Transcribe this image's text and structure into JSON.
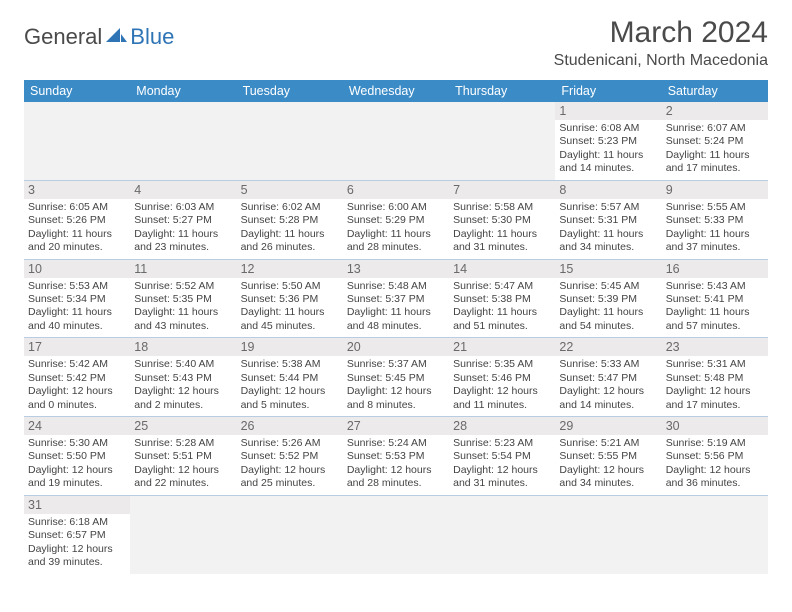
{
  "logo": {
    "general": "General",
    "blue": "Blue"
  },
  "title": "March 2024",
  "location": "Studenicani, North Macedonia",
  "colors": {
    "header_bg": "#3b8bc7",
    "header_text": "#ffffff",
    "cell_border": "#b9cde2",
    "daynum_bg": "#eceaea",
    "empty_bg": "#f2f2f2",
    "logo_blue": "#2f75b5",
    "text": "#4a4a4a"
  },
  "day_headers": [
    "Sunday",
    "Monday",
    "Tuesday",
    "Wednesday",
    "Thursday",
    "Friday",
    "Saturday"
  ],
  "weeks": [
    [
      null,
      null,
      null,
      null,
      null,
      {
        "n": "1",
        "sr": "Sunrise: 6:08 AM",
        "ss": "Sunset: 5:23 PM",
        "dl": "Daylight: 11 hours and 14 minutes."
      },
      {
        "n": "2",
        "sr": "Sunrise: 6:07 AM",
        "ss": "Sunset: 5:24 PM",
        "dl": "Daylight: 11 hours and 17 minutes."
      }
    ],
    [
      {
        "n": "3",
        "sr": "Sunrise: 6:05 AM",
        "ss": "Sunset: 5:26 PM",
        "dl": "Daylight: 11 hours and 20 minutes."
      },
      {
        "n": "4",
        "sr": "Sunrise: 6:03 AM",
        "ss": "Sunset: 5:27 PM",
        "dl": "Daylight: 11 hours and 23 minutes."
      },
      {
        "n": "5",
        "sr": "Sunrise: 6:02 AM",
        "ss": "Sunset: 5:28 PM",
        "dl": "Daylight: 11 hours and 26 minutes."
      },
      {
        "n": "6",
        "sr": "Sunrise: 6:00 AM",
        "ss": "Sunset: 5:29 PM",
        "dl": "Daylight: 11 hours and 28 minutes."
      },
      {
        "n": "7",
        "sr": "Sunrise: 5:58 AM",
        "ss": "Sunset: 5:30 PM",
        "dl": "Daylight: 11 hours and 31 minutes."
      },
      {
        "n": "8",
        "sr": "Sunrise: 5:57 AM",
        "ss": "Sunset: 5:31 PM",
        "dl": "Daylight: 11 hours and 34 minutes."
      },
      {
        "n": "9",
        "sr": "Sunrise: 5:55 AM",
        "ss": "Sunset: 5:33 PM",
        "dl": "Daylight: 11 hours and 37 minutes."
      }
    ],
    [
      {
        "n": "10",
        "sr": "Sunrise: 5:53 AM",
        "ss": "Sunset: 5:34 PM",
        "dl": "Daylight: 11 hours and 40 minutes."
      },
      {
        "n": "11",
        "sr": "Sunrise: 5:52 AM",
        "ss": "Sunset: 5:35 PM",
        "dl": "Daylight: 11 hours and 43 minutes."
      },
      {
        "n": "12",
        "sr": "Sunrise: 5:50 AM",
        "ss": "Sunset: 5:36 PM",
        "dl": "Daylight: 11 hours and 45 minutes."
      },
      {
        "n": "13",
        "sr": "Sunrise: 5:48 AM",
        "ss": "Sunset: 5:37 PM",
        "dl": "Daylight: 11 hours and 48 minutes."
      },
      {
        "n": "14",
        "sr": "Sunrise: 5:47 AM",
        "ss": "Sunset: 5:38 PM",
        "dl": "Daylight: 11 hours and 51 minutes."
      },
      {
        "n": "15",
        "sr": "Sunrise: 5:45 AM",
        "ss": "Sunset: 5:39 PM",
        "dl": "Daylight: 11 hours and 54 minutes."
      },
      {
        "n": "16",
        "sr": "Sunrise: 5:43 AM",
        "ss": "Sunset: 5:41 PM",
        "dl": "Daylight: 11 hours and 57 minutes."
      }
    ],
    [
      {
        "n": "17",
        "sr": "Sunrise: 5:42 AM",
        "ss": "Sunset: 5:42 PM",
        "dl": "Daylight: 12 hours and 0 minutes."
      },
      {
        "n": "18",
        "sr": "Sunrise: 5:40 AM",
        "ss": "Sunset: 5:43 PM",
        "dl": "Daylight: 12 hours and 2 minutes."
      },
      {
        "n": "19",
        "sr": "Sunrise: 5:38 AM",
        "ss": "Sunset: 5:44 PM",
        "dl": "Daylight: 12 hours and 5 minutes."
      },
      {
        "n": "20",
        "sr": "Sunrise: 5:37 AM",
        "ss": "Sunset: 5:45 PM",
        "dl": "Daylight: 12 hours and 8 minutes."
      },
      {
        "n": "21",
        "sr": "Sunrise: 5:35 AM",
        "ss": "Sunset: 5:46 PM",
        "dl": "Daylight: 12 hours and 11 minutes."
      },
      {
        "n": "22",
        "sr": "Sunrise: 5:33 AM",
        "ss": "Sunset: 5:47 PM",
        "dl": "Daylight: 12 hours and 14 minutes."
      },
      {
        "n": "23",
        "sr": "Sunrise: 5:31 AM",
        "ss": "Sunset: 5:48 PM",
        "dl": "Daylight: 12 hours and 17 minutes."
      }
    ],
    [
      {
        "n": "24",
        "sr": "Sunrise: 5:30 AM",
        "ss": "Sunset: 5:50 PM",
        "dl": "Daylight: 12 hours and 19 minutes."
      },
      {
        "n": "25",
        "sr": "Sunrise: 5:28 AM",
        "ss": "Sunset: 5:51 PM",
        "dl": "Daylight: 12 hours and 22 minutes."
      },
      {
        "n": "26",
        "sr": "Sunrise: 5:26 AM",
        "ss": "Sunset: 5:52 PM",
        "dl": "Daylight: 12 hours and 25 minutes."
      },
      {
        "n": "27",
        "sr": "Sunrise: 5:24 AM",
        "ss": "Sunset: 5:53 PM",
        "dl": "Daylight: 12 hours and 28 minutes."
      },
      {
        "n": "28",
        "sr": "Sunrise: 5:23 AM",
        "ss": "Sunset: 5:54 PM",
        "dl": "Daylight: 12 hours and 31 minutes."
      },
      {
        "n": "29",
        "sr": "Sunrise: 5:21 AM",
        "ss": "Sunset: 5:55 PM",
        "dl": "Daylight: 12 hours and 34 minutes."
      },
      {
        "n": "30",
        "sr": "Sunrise: 5:19 AM",
        "ss": "Sunset: 5:56 PM",
        "dl": "Daylight: 12 hours and 36 minutes."
      }
    ],
    [
      {
        "n": "31",
        "sr": "Sunrise: 6:18 AM",
        "ss": "Sunset: 6:57 PM",
        "dl": "Daylight: 12 hours and 39 minutes."
      },
      null,
      null,
      null,
      null,
      null,
      null
    ]
  ]
}
